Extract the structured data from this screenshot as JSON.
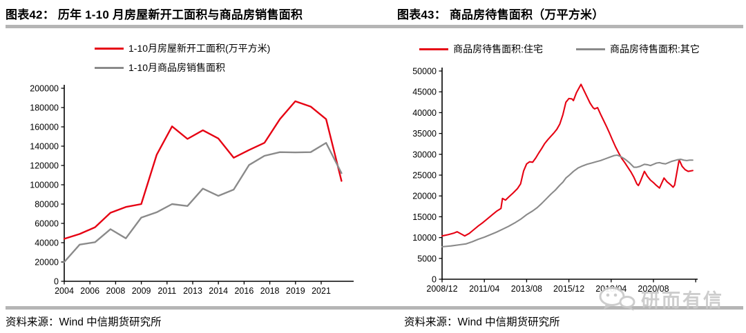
{
  "panels": [
    {
      "title": "图表42： 历年 1-10 月房屋新开工面积与商品房销售面积",
      "source": "资料来源：Wind 中信期货研究所"
    },
    {
      "title": "图表43： 商品房待售面积（万平方米）",
      "source": "资料来源：Wind 中信期货研究所"
    }
  ],
  "watermark": {
    "text": "研而有信"
  },
  "colors": {
    "red": "#e60012",
    "gray": "#8a8a8a",
    "axis": "#000000",
    "rule": "#b5b5b5",
    "watermark": "#c9c9c9"
  },
  "chart_data": [
    {
      "type": "line",
      "title": "历年 1-10 月房屋新开工面积与商品房销售面积",
      "xlabel": "",
      "ylabel": "",
      "ylim": [
        0,
        200000
      ],
      "y_step": 20000,
      "grid": false,
      "legend_position": "top-left",
      "x_tick_labels": [
        "2004",
        "2006",
        "2008",
        "2009",
        "2011",
        "2013",
        "2014",
        "2016",
        "2018",
        "2019",
        "2021"
      ],
      "categories": [
        2004,
        2005,
        2006,
        2007,
        2008,
        2009,
        2010,
        2011,
        2012,
        2013,
        2014,
        2015,
        2016,
        2017,
        2018,
        2019,
        2020,
        2021,
        2022
      ],
      "series": [
        {
          "name": "1-10月房屋新开工面积(万平方米)",
          "color": "#e60012",
          "values": [
            44000,
            49000,
            56000,
            71000,
            77000,
            80000,
            131000,
            160500,
            147500,
            156500,
            148000,
            128000,
            136000,
            143500,
            168000,
            186500,
            181000,
            168000,
            104000
          ]
        },
        {
          "name": "1-10月商品房销售面积",
          "color": "#8a8a8a",
          "values": [
            20000,
            38000,
            40500,
            54000,
            44500,
            66000,
            71500,
            80000,
            78000,
            96000,
            88500,
            95000,
            120500,
            130000,
            133800,
            133500,
            133800,
            143400,
            112000
          ]
        }
      ]
    },
    {
      "type": "line",
      "title": "商品房待售面积（万平方米）",
      "xlabel": "",
      "ylabel": "",
      "ylim": [
        0,
        50000
      ],
      "y_step": 5000,
      "grid": false,
      "legend_position": "top",
      "x_tick_labels": [
        "2008/12",
        "2011/04",
        "2013/08",
        "2015/12",
        "2018/04",
        "2020/08"
      ],
      "x_unit": "months since 2008/12",
      "series": [
        {
          "name": "商品房待售面积:住宅",
          "color": "#e60012",
          "points": [
            [
              0,
              10400
            ],
            [
              4,
              10700
            ],
            [
              8,
              11100
            ],
            [
              10,
              11400
            ],
            [
              13,
              10800
            ],
            [
              15,
              10400
            ],
            [
              18,
              11000
            ],
            [
              21,
              11900
            ],
            [
              24,
              12800
            ],
            [
              27,
              13600
            ],
            [
              30,
              14500
            ],
            [
              33,
              15400
            ],
            [
              36,
              16300
            ],
            [
              39,
              17000
            ],
            [
              40,
              19400
            ],
            [
              42,
              19000
            ],
            [
              44,
              19700
            ],
            [
              47,
              20700
            ],
            [
              50,
              21800
            ],
            [
              52,
              22900
            ],
            [
              54,
              26000
            ],
            [
              56,
              27700
            ],
            [
              58,
              28200
            ],
            [
              60,
              28100
            ],
            [
              62,
              29100
            ],
            [
              64,
              30300
            ],
            [
              66,
              31400
            ],
            [
              68,
              32600
            ],
            [
              70,
              33500
            ],
            [
              72,
              34300
            ],
            [
              74,
              35100
            ],
            [
              76,
              36000
            ],
            [
              78,
              37300
            ],
            [
              80,
              39500
            ],
            [
              82,
              42500
            ],
            [
              84,
              43400
            ],
            [
              86,
              43300
            ],
            [
              87,
              42900
            ],
            [
              89,
              44800
            ],
            [
              92,
              46800
            ],
            [
              94,
              45300
            ],
            [
              96,
              43800
            ],
            [
              98,
              42300
            ],
            [
              100,
              41200
            ],
            [
              101,
              40900
            ],
            [
              103,
              41200
            ],
            [
              105,
              39600
            ],
            [
              107,
              38100
            ],
            [
              109,
              36600
            ],
            [
              111,
              35000
            ],
            [
              113,
              33300
            ],
            [
              115,
              31700
            ],
            [
              117,
              30300
            ],
            [
              119,
              29000
            ],
            [
              121,
              28000
            ],
            [
              123,
              26900
            ],
            [
              125,
              25800
            ],
            [
              127,
              24500
            ],
            [
              129,
              22900
            ],
            [
              130,
              22500
            ],
            [
              131,
              23200
            ],
            [
              134,
              25900
            ],
            [
              136,
              24700
            ],
            [
              138,
              23800
            ],
            [
              140,
              23200
            ],
            [
              142,
              22500
            ],
            [
              144,
              21900
            ],
            [
              147,
              24300
            ],
            [
              149,
              23400
            ],
            [
              151,
              22800
            ],
            [
              153,
              22100
            ],
            [
              154,
              22600
            ],
            [
              157,
              28700
            ],
            [
              159,
              27100
            ],
            [
              161,
              26300
            ],
            [
              163,
              25900
            ],
            [
              166,
              26100
            ]
          ]
        },
        {
          "name": "商品房待售面积:其它",
          "color": "#8a8a8a",
          "points": [
            [
              0,
              7800
            ],
            [
              6,
              8000
            ],
            [
              12,
              8300
            ],
            [
              16,
              8500
            ],
            [
              20,
              9000
            ],
            [
              24,
              9600
            ],
            [
              28,
              10100
            ],
            [
              32,
              10700
            ],
            [
              36,
              11300
            ],
            [
              40,
              12000
            ],
            [
              44,
              12700
            ],
            [
              48,
              13500
            ],
            [
              52,
              14400
            ],
            [
              56,
              15500
            ],
            [
              60,
              16400
            ],
            [
              63,
              17200
            ],
            [
              66,
              18200
            ],
            [
              69,
              19300
            ],
            [
              72,
              20400
            ],
            [
              75,
              21400
            ],
            [
              78,
              22600
            ],
            [
              80,
              23300
            ],
            [
              82,
              24300
            ],
            [
              84,
              24900
            ],
            [
              87,
              25900
            ],
            [
              90,
              26700
            ],
            [
              93,
              27200
            ],
            [
              96,
              27600
            ],
            [
              99,
              27900
            ],
            [
              102,
              28200
            ],
            [
              105,
              28500
            ],
            [
              108,
              28900
            ],
            [
              111,
              29300
            ],
            [
              114,
              29700
            ],
            [
              116,
              29800
            ],
            [
              118,
              29500
            ],
            [
              120,
              29100
            ],
            [
              122,
              28600
            ],
            [
              124,
              28000
            ],
            [
              127,
              26900
            ],
            [
              129,
              26900
            ],
            [
              131,
              27100
            ],
            [
              134,
              27600
            ],
            [
              136,
              27500
            ],
            [
              138,
              27300
            ],
            [
              140,
              27600
            ],
            [
              142,
              27900
            ],
            [
              144,
              28000
            ],
            [
              146,
              27800
            ],
            [
              148,
              27700
            ],
            [
              150,
              28000
            ],
            [
              152,
              28300
            ],
            [
              154,
              28500
            ],
            [
              156,
              28700
            ],
            [
              158,
              28800
            ],
            [
              160,
              28600
            ],
            [
              162,
              28500
            ],
            [
              164,
              28600
            ],
            [
              166,
              28600
            ]
          ]
        }
      ]
    }
  ]
}
